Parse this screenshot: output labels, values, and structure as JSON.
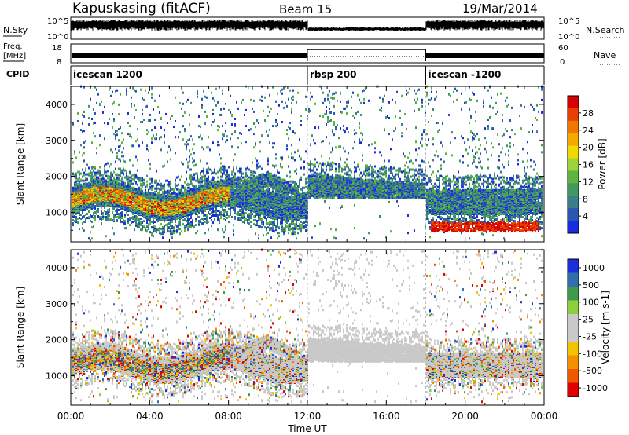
{
  "header": {
    "station": "Kapuskasing (fitACF)",
    "beam": "Beam 15",
    "date": "19/Mar/2014"
  },
  "side_labels": {
    "nsky": "N.Sky",
    "freq_line1": "Freq.",
    "freq_line2": "[MHz]",
    "cpid": "CPID",
    "nsearch": "N.Search",
    "nave": "Nave"
  },
  "top_ticks": {
    "nsky_left": [
      "10^5",
      "10^0"
    ],
    "nsearch_right": [
      "10^5",
      "10^0"
    ],
    "freq_left": [
      "18",
      "8"
    ],
    "nave_right": [
      "60",
      "0"
    ]
  },
  "cpid_segments": [
    {
      "label": "icescan 1200",
      "start": 0,
      "end": 12
    },
    {
      "label": "rbsp 200",
      "start": 12,
      "end": 18
    },
    {
      "label": "icescan -1200",
      "start": 18,
      "end": 24
    }
  ],
  "chart_data": [
    {
      "type": "heatmap",
      "name": "power",
      "x_range": [
        0,
        24
      ],
      "ylim": [
        180,
        4500
      ],
      "ylabel": "Slant Range [km]",
      "yticks": [
        1000,
        2000,
        3000,
        4000
      ],
      "colorbar": {
        "label": "Power [dB]",
        "ticks": [
          "4",
          "8",
          "12",
          "16",
          "20",
          "24",
          "28"
        ],
        "colors": [
          "#1a2ce0",
          "#2a57b0",
          "#3a7f8a",
          "#3f9a60",
          "#5fb43f",
          "#9fd23a",
          "#f0d800",
          "#f5a800",
          "#f07800",
          "#e84000",
          "#d80000"
        ]
      },
      "regions": [
        {
          "t0": 0.3,
          "t1": 12,
          "r0": 1000,
          "r1": 1700,
          "desc": "main band"
        },
        {
          "t0": 12,
          "t1": 18,
          "r0": 1400,
          "r1": 2050
        },
        {
          "t0": 18,
          "t1": 24,
          "r0": 800,
          "r1": 1600
        },
        {
          "t0": 18.2,
          "t1": 23.7,
          "r0": 450,
          "r1": 700
        }
      ]
    },
    {
      "type": "heatmap",
      "name": "velocity",
      "x_range": [
        0,
        24
      ],
      "ylim": [
        180,
        4500
      ],
      "ylabel": "Slant Range [km]",
      "yticks": [
        1000,
        2000,
        3000,
        4000
      ],
      "colorbar": {
        "label": "Velocity [m s-1]",
        "ticks": [
          "1000",
          "500",
          "100",
          "25",
          "-25",
          "-100",
          "-500",
          "-1000"
        ],
        "colors": [
          "#1c2fd8",
          "#2f6fb0",
          "#3f9a4a",
          "#8ccf3a",
          "#c9c9c9",
          "#c9c9c9",
          "#f3c300",
          "#f29000",
          "#ee5a00",
          "#e00000"
        ]
      }
    }
  ],
  "xaxis": {
    "ticks": [
      "00:00",
      "04:00",
      "08:00",
      "12:00",
      "16:00",
      "20:00",
      "00:00"
    ],
    "label": "Time UT"
  },
  "colors": {
    "frame": "#000000",
    "background": "#ffffff"
  }
}
